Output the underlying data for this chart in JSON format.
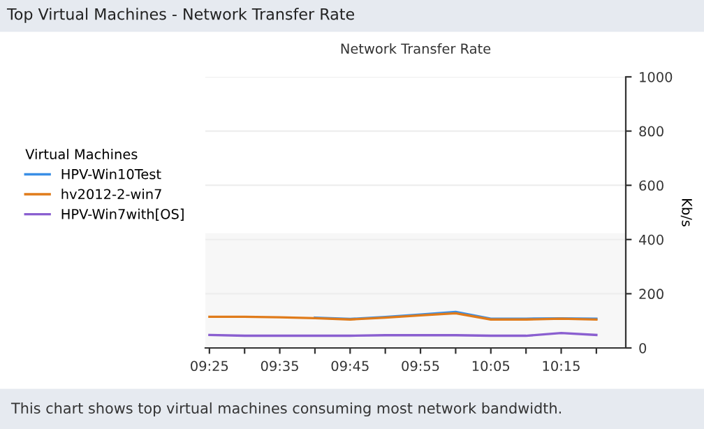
{
  "chart_data": {
    "type": "line",
    "title": "Top Virtual Machines - Network Transfer Rate",
    "subtitle": "Network Transfer Rate",
    "ylabel": "Kb/s",
    "legend_title": "Virtual Machines",
    "legend": "left",
    "annotations": [
      "This chart shows top virtual machines consuming most network bandwidth."
    ],
    "x": [
      9.41667,
      9.5,
      9.58333,
      9.66667,
      9.75,
      9.83333,
      9.91667,
      10.0,
      10.08333,
      10.16667,
      10.25,
      10.33333
    ],
    "series": [
      {
        "name": "HPV-Win10Test",
        "color": "#3a8ee6",
        "values": [
          null,
          null,
          null,
          112,
          107,
          114,
          123,
          133,
          108,
          108,
          109,
          108
        ]
      },
      {
        "name": "hv2012-2-win7",
        "color": "#e07b1a",
        "values": [
          115,
          115,
          113,
          110,
          105,
          112,
          120,
          128,
          105,
          105,
          108,
          105
        ]
      },
      {
        "name": "HPV-Win7with[OS]",
        "color": "#8a5fd0",
        "values": [
          48,
          45,
          45,
          45,
          45,
          47,
          47,
          47,
          45,
          45,
          55,
          48
        ]
      }
    ],
    "xlim": [
      9.407,
      10.403
    ],
    "xticks": [
      {
        "value": 9.41667,
        "label": "09:25"
      },
      {
        "value": 9.5,
        "label": null
      },
      {
        "value": 9.58333,
        "label": "09:35"
      },
      {
        "value": 9.66667,
        "label": null
      },
      {
        "value": 9.75,
        "label": "09:45"
      },
      {
        "value": 9.83333,
        "label": null
      },
      {
        "value": 9.91667,
        "label": "09:55"
      },
      {
        "value": 10.0,
        "label": null
      },
      {
        "value": 10.08333,
        "label": "10:05"
      },
      {
        "value": 10.16667,
        "label": null
      },
      {
        "value": 10.25,
        "label": "10:15"
      },
      {
        "value": 10.33333,
        "label": null
      }
    ],
    "ylim": [
      0,
      1000
    ],
    "yticks": [
      0,
      200,
      400,
      600,
      800,
      1000
    ],
    "bands": [
      {
        "axis": "y",
        "from": 0,
        "to": 420,
        "color": "#f7f7f7"
      }
    ],
    "grid": "y",
    "marker": "none",
    "line_style": "solid"
  }
}
